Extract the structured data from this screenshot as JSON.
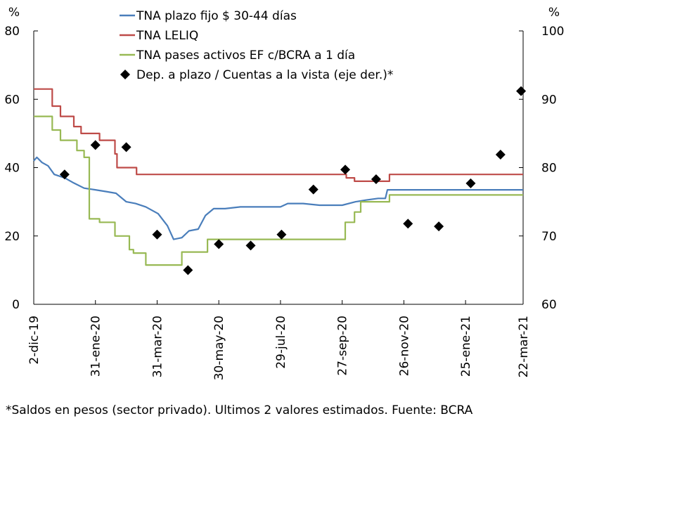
{
  "chart_data": {
    "type": "line",
    "left_axis": {
      "unit": "%",
      "range": [
        0,
        80
      ],
      "ticks": [
        "0",
        "20",
        "40",
        "60",
        "80"
      ]
    },
    "right_axis": {
      "unit": "%",
      "range": [
        60,
        100
      ],
      "ticks": [
        "60",
        "70",
        "80",
        "90",
        "100"
      ]
    },
    "x_axis": {
      "start": "2019-12-02",
      "end": "2021-03-22",
      "tick_dates": [
        "2019-12-02",
        "2020-01-31",
        "2020-03-31",
        "2020-05-30",
        "2020-07-29",
        "2020-09-27",
        "2020-11-26",
        "2021-01-25",
        "2021-03-22"
      ],
      "tick_labels": [
        "2-dic-19",
        "31-ene-20",
        "31-mar-20",
        "30-may-20",
        "29-jul-20",
        "27-sep-20",
        "26-nov-20",
        "25-ene-21",
        "22-mar-21"
      ]
    },
    "series": [
      {
        "name": "TNA plazo fijo $ 30-44 días",
        "axis": "left",
        "color": "#4a7ebb",
        "kind": "line",
        "points": [
          [
            "2019-12-02",
            42
          ],
          [
            "2019-12-05",
            43
          ],
          [
            "2019-12-10",
            41.5
          ],
          [
            "2019-12-16",
            40.5
          ],
          [
            "2019-12-22",
            38
          ],
          [
            "2020-01-01",
            37
          ],
          [
            "2020-01-10",
            35.5
          ],
          [
            "2020-01-20",
            34
          ],
          [
            "2020-01-31",
            33.5
          ],
          [
            "2020-02-10",
            33
          ],
          [
            "2020-02-20",
            32.5
          ],
          [
            "2020-03-01",
            30
          ],
          [
            "2020-03-10",
            29.5
          ],
          [
            "2020-03-20",
            28.5
          ],
          [
            "2020-04-01",
            26.5
          ],
          [
            "2020-04-10",
            23
          ],
          [
            "2020-04-16",
            19
          ],
          [
            "2020-04-24",
            19.5
          ],
          [
            "2020-05-01",
            21.5
          ],
          [
            "2020-05-10",
            22
          ],
          [
            "2020-05-17",
            26
          ],
          [
            "2020-05-25",
            28
          ],
          [
            "2020-06-05",
            28
          ],
          [
            "2020-06-20",
            28.5
          ],
          [
            "2020-07-10",
            28.5
          ],
          [
            "2020-07-29",
            28.5
          ],
          [
            "2020-08-05",
            29.5
          ],
          [
            "2020-08-20",
            29.5
          ],
          [
            "2020-09-05",
            29
          ],
          [
            "2020-09-20",
            29
          ],
          [
            "2020-09-27",
            29
          ],
          [
            "2020-10-10",
            30
          ],
          [
            "2020-10-20",
            30.5
          ],
          [
            "2020-11-01",
            31
          ],
          [
            "2020-11-08",
            31
          ],
          [
            "2020-11-10",
            33.5
          ],
          [
            "2020-11-26",
            33.5
          ],
          [
            "2020-12-15",
            33.5
          ],
          [
            "2021-01-05",
            33.5
          ],
          [
            "2021-01-25",
            33.5
          ],
          [
            "2021-02-15",
            33.5
          ],
          [
            "2021-03-22",
            33.5
          ]
        ]
      },
      {
        "name": "TNA LELIQ",
        "axis": "left",
        "color": "#be4b48",
        "kind": "step",
        "points": [
          [
            "2019-12-02",
            63
          ],
          [
            "2019-12-20",
            58
          ],
          [
            "2019-12-28",
            55
          ],
          [
            "2020-01-10",
            52
          ],
          [
            "2020-01-17",
            50
          ],
          [
            "2020-02-04",
            48
          ],
          [
            "2020-02-19",
            44
          ],
          [
            "2020-02-21",
            40
          ],
          [
            "2020-03-11",
            38
          ],
          [
            "2020-10-01",
            37
          ],
          [
            "2020-10-09",
            36
          ],
          [
            "2020-11-12",
            38
          ],
          [
            "2021-03-22",
            38
          ]
        ]
      },
      {
        "name": "TNA pases activos EF c/BCRA a 1 día",
        "axis": "left",
        "color": "#98b954",
        "kind": "step",
        "points": [
          [
            "2019-12-02",
            55
          ],
          [
            "2019-12-20",
            51
          ],
          [
            "2019-12-28",
            48
          ],
          [
            "2020-01-13",
            45
          ],
          [
            "2020-01-20",
            43
          ],
          [
            "2020-01-25",
            25
          ],
          [
            "2020-02-04",
            24
          ],
          [
            "2020-02-19",
            20
          ],
          [
            "2020-03-04",
            16
          ],
          [
            "2020-03-08",
            15
          ],
          [
            "2020-03-20",
            11.5
          ],
          [
            "2020-04-24",
            15.3
          ],
          [
            "2020-05-19",
            19
          ],
          [
            "2020-09-30",
            24
          ],
          [
            "2020-10-09",
            27
          ],
          [
            "2020-10-15",
            30
          ],
          [
            "2020-11-12",
            32
          ],
          [
            "2021-03-22",
            32
          ]
        ]
      },
      {
        "name": "Dep. a plazo / Cuentas a la vista (eje der.)*",
        "axis": "right",
        "color": "#000000",
        "kind": "marker",
        "points": [
          [
            "2020-01-01",
            79
          ],
          [
            "2020-01-31",
            83.3
          ],
          [
            "2020-03-01",
            83
          ],
          [
            "2020-03-31",
            70.2
          ],
          [
            "2020-04-30",
            65
          ],
          [
            "2020-05-30",
            68.8
          ],
          [
            "2020-06-30",
            68.6
          ],
          [
            "2020-07-30",
            70.2
          ],
          [
            "2020-08-30",
            76.8
          ],
          [
            "2020-09-30",
            79.7
          ],
          [
            "2020-10-30",
            78.3
          ],
          [
            "2020-11-30",
            71.8
          ],
          [
            "2020-12-30",
            71.4
          ],
          [
            "2021-01-30",
            77.7
          ],
          [
            "2021-02-28",
            81.9
          ],
          [
            "2021-03-20",
            91.2
          ]
        ]
      }
    ]
  },
  "footnote": "*Saldos en pesos (sector privado). Ultimos 2 valores estimados. Fuente: BCRA"
}
